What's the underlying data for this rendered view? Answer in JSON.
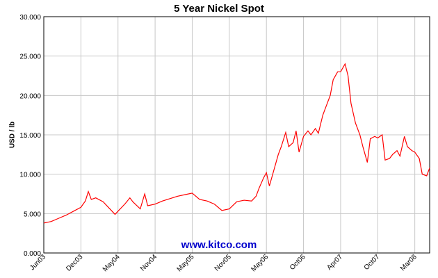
{
  "chart_data": {
    "type": "line",
    "title": "5 Year Nickel Spot",
    "y_label": "USD / lb",
    "watermark": "www.kitco.com",
    "x": [
      0,
      5,
      10,
      15,
      20,
      25,
      28,
      30,
      32,
      35,
      40,
      45,
      48,
      50,
      55,
      58,
      60,
      65,
      68,
      70,
      75,
      80,
      85,
      90,
      95,
      100,
      105,
      110,
      115,
      120,
      125,
      130,
      135,
      140,
      143,
      145,
      148,
      150,
      152,
      155,
      158,
      160,
      163,
      165,
      168,
      170,
      172,
      175,
      178,
      180,
      183,
      185,
      188,
      190,
      193,
      195,
      198,
      200,
      203,
      205,
      207,
      210,
      213,
      215,
      218,
      220,
      223,
      225,
      228,
      230,
      233,
      235,
      238,
      240,
      243,
      245,
      248,
      250,
      253,
      255,
      258,
      260
    ],
    "series": [
      {
        "name": "Nickel",
        "color": "#ff0000",
        "values": [
          3.8,
          4.0,
          4.4,
          4.8,
          5.3,
          5.8,
          6.6,
          7.8,
          6.8,
          7.0,
          6.5,
          5.5,
          4.9,
          5.3,
          6.3,
          7.0,
          6.5,
          5.6,
          7.5,
          6.0,
          6.2,
          6.6,
          6.9,
          7.2,
          7.4,
          7.6,
          6.8,
          6.6,
          6.2,
          5.4,
          5.6,
          6.5,
          6.7,
          6.6,
          7.2,
          8.2,
          9.5,
          10.2,
          8.5,
          10.5,
          12.5,
          13.5,
          15.3,
          13.5,
          14.0,
          15.5,
          12.8,
          14.8,
          15.5,
          15.0,
          15.8,
          15.2,
          17.5,
          18.5,
          20.0,
          22.0,
          23.0,
          23.0,
          24.0,
          22.5,
          19.0,
          16.5,
          15.0,
          13.5,
          11.5,
          14.5,
          14.8,
          14.6,
          15.0,
          11.8,
          12.0,
          12.5,
          13.0,
          12.3,
          14.8,
          13.5,
          13.0,
          12.8,
          12.0,
          10.0,
          9.8,
          10.8
        ]
      }
    ],
    "xlim": [
      0,
      260
    ],
    "xticks": [
      {
        "value": 0,
        "label": "Jun03"
      },
      {
        "value": 25,
        "label": "Dec03"
      },
      {
        "value": 50,
        "label": "May04"
      },
      {
        "value": 75,
        "label": "Nov04"
      },
      {
        "value": 100,
        "label": "May05"
      },
      {
        "value": 125,
        "label": "Nov05"
      },
      {
        "value": 150,
        "label": "May06"
      },
      {
        "value": 175,
        "label": "Oct06"
      },
      {
        "value": 200,
        "label": "Apr07"
      },
      {
        "value": 225,
        "label": "Oct07"
      },
      {
        "value": 250,
        "label": "Mar08"
      }
    ],
    "ylim": [
      0,
      30
    ],
    "yticks": [
      {
        "value": 0,
        "label": "0.000"
      },
      {
        "value": 5,
        "label": "5.000"
      },
      {
        "value": 10,
        "label": "10.000"
      },
      {
        "value": 15,
        "label": "15.000"
      },
      {
        "value": 20,
        "label": "20.000"
      },
      {
        "value": 25,
        "label": "25.000"
      },
      {
        "value": 30,
        "label": "30.000"
      }
    ],
    "grid": true
  }
}
